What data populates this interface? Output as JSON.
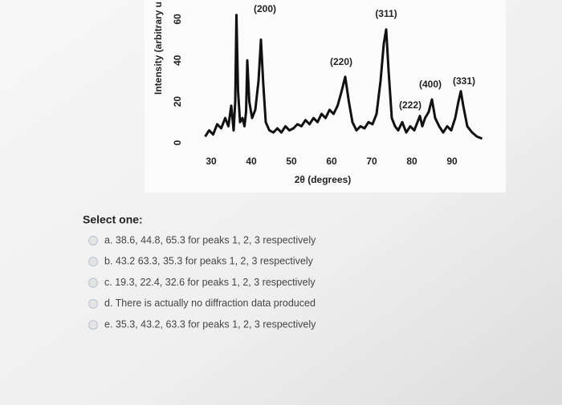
{
  "chart_data": {
    "type": "line",
    "ylabel": "Intensity (arbitrary u",
    "xlabel": "2θ (degrees)",
    "annotations": [
      "(200)",
      "(311)",
      "(220)",
      "(400)",
      "(331)",
      "(222)"
    ],
    "xlim": [
      24,
      98
    ],
    "xticks": [
      30,
      40,
      50,
      60,
      70,
      80,
      90
    ],
    "ylim": [
      0,
      65
    ],
    "yticks": [
      0,
      20,
      40,
      60
    ],
    "grid": false,
    "series": [
      {
        "color": "#111111",
        "x": [
          28.5,
          29.5,
          30.5,
          31.5,
          32.5,
          33.5,
          34.3,
          35,
          35.6,
          36.0,
          36.3,
          36.7,
          37.2,
          37.8,
          38.3,
          38.7,
          39.0,
          39.5,
          40.2,
          41.0,
          41.8,
          42.4,
          43.0,
          43.6,
          44.5,
          45.5,
          46.5,
          47.5,
          48.5,
          49.5,
          50.5,
          51.5,
          52.5,
          53.5,
          54.5,
          55.5,
          56.5,
          57.5,
          58.5,
          59.5,
          60.5,
          61.5,
          62.5,
          63.4,
          64.3,
          65.2,
          66.2,
          67.2,
          68.2,
          69.2,
          70.2,
          71.2,
          72.2,
          73.0,
          73.6,
          74.2,
          75,
          75.8,
          76.6,
          77.6,
          78.6,
          79.6,
          80.6,
          81.4,
          82.0,
          82.6,
          83.3,
          84.2,
          85.0,
          85.8,
          86.8,
          87.8,
          88.8,
          89.8,
          90.8,
          91.6,
          92.2,
          92.8,
          93.8,
          95,
          96.2,
          97.5
        ],
        "values": [
          3,
          6,
          4,
          9,
          7,
          12,
          8,
          18,
          6,
          20,
          62,
          25,
          10,
          12,
          8,
          15,
          40,
          20,
          12,
          16,
          30,
          50,
          28,
          10,
          6,
          5,
          7,
          5,
          8,
          6,
          7,
          9,
          8,
          11,
          9,
          12,
          10,
          14,
          12,
          16,
          14,
          18,
          25,
          32,
          20,
          10,
          6,
          8,
          7,
          10,
          9,
          14,
          30,
          48,
          55,
          35,
          12,
          8,
          6,
          10,
          5,
          8,
          6,
          10,
          13,
          8,
          12,
          15,
          21,
          12,
          8,
          5,
          8,
          6,
          12,
          20,
          25,
          18,
          8,
          5,
          3,
          2
        ]
      }
    ]
  },
  "question": {
    "prompt": "Select one:",
    "options": [
      "a. 38.6, 44.8, 65.3 for peaks 1, 2, 3 respectively",
      "b. 43.2 63.3, 35.3 for peaks 1, 2, 3 respectively",
      "c. 19.3, 22.4, 32.6 for peaks 1, 2, 3 respectively",
      "d. There is actually no diffraction data produced",
      "e. 35.3, 43.2, 63.3 for peaks 1, 2, 3 respectively"
    ]
  }
}
